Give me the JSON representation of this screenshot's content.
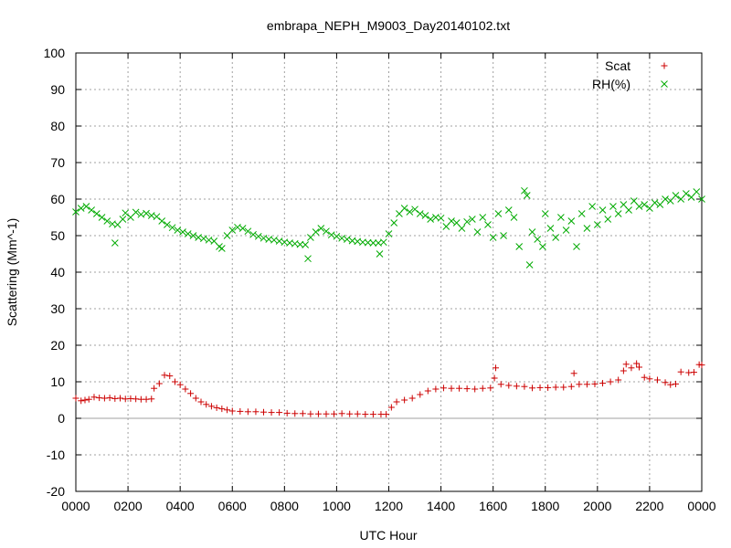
{
  "chart_data": {
    "type": "scatter",
    "title": "embrapa_NEPH_M9003_Day20140102.txt",
    "xlabel": "UTC Hour",
    "ylabel": "Scattering (Mm^-1)",
    "xlim": [
      0,
      24
    ],
    "ylim": [
      -20,
      100
    ],
    "yticks": [
      -20,
      -10,
      0,
      10,
      20,
      30,
      40,
      50,
      60,
      70,
      80,
      90,
      100
    ],
    "xticks": [
      0,
      2,
      4,
      6,
      8,
      10,
      12,
      14,
      16,
      18,
      20,
      22,
      24
    ],
    "xtick_labels": [
      "0000",
      "0200",
      "0400",
      "0600",
      "0800",
      "1000",
      "1200",
      "1400",
      "1600",
      "1800",
      "2000",
      "2200",
      "0000"
    ],
    "grid": true,
    "legend_position": "top-right",
    "series": [
      {
        "name": "Scat",
        "marker": "plus",
        "color": "#cc0000",
        "points": [
          [
            0.0,
            5.5
          ],
          [
            0.2,
            4.8
          ],
          [
            0.35,
            5.0
          ],
          [
            0.5,
            5.2
          ],
          [
            0.7,
            5.8
          ],
          [
            0.9,
            5.6
          ],
          [
            1.1,
            5.5
          ],
          [
            1.3,
            5.6
          ],
          [
            1.5,
            5.4
          ],
          [
            1.7,
            5.5
          ],
          [
            1.9,
            5.3
          ],
          [
            2.1,
            5.4
          ],
          [
            2.3,
            5.3
          ],
          [
            2.5,
            5.2
          ],
          [
            2.7,
            5.2
          ],
          [
            2.9,
            5.3
          ],
          [
            3.0,
            8.2
          ],
          [
            3.2,
            9.5
          ],
          [
            3.4,
            11.8
          ],
          [
            3.6,
            11.6
          ],
          [
            3.8,
            10.0
          ],
          [
            4.0,
            9.2
          ],
          [
            4.2,
            8.0
          ],
          [
            4.4,
            6.8
          ],
          [
            4.6,
            5.5
          ],
          [
            4.8,
            4.5
          ],
          [
            5.0,
            3.8
          ],
          [
            5.2,
            3.3
          ],
          [
            5.4,
            2.9
          ],
          [
            5.6,
            2.6
          ],
          [
            5.8,
            2.3
          ],
          [
            6.0,
            2.0
          ],
          [
            6.3,
            1.9
          ],
          [
            6.6,
            1.8
          ],
          [
            6.9,
            1.8
          ],
          [
            7.2,
            1.7
          ],
          [
            7.5,
            1.6
          ],
          [
            7.8,
            1.6
          ],
          [
            8.1,
            1.4
          ],
          [
            8.4,
            1.3
          ],
          [
            8.7,
            1.3
          ],
          [
            9.0,
            1.2
          ],
          [
            9.3,
            1.2
          ],
          [
            9.6,
            1.2
          ],
          [
            9.9,
            1.2
          ],
          [
            10.2,
            1.3
          ],
          [
            10.5,
            1.2
          ],
          [
            10.8,
            1.2
          ],
          [
            11.1,
            1.1
          ],
          [
            11.4,
            1.1
          ],
          [
            11.7,
            1.1
          ],
          [
            11.9,
            1.1
          ],
          [
            12.1,
            3.0
          ],
          [
            12.3,
            4.5
          ],
          [
            12.6,
            5.0
          ],
          [
            12.9,
            5.5
          ],
          [
            13.2,
            6.5
          ],
          [
            13.5,
            7.5
          ],
          [
            13.8,
            8.0
          ],
          [
            14.1,
            8.3
          ],
          [
            14.4,
            8.2
          ],
          [
            14.7,
            8.2
          ],
          [
            15.0,
            8.1
          ],
          [
            15.3,
            8.0
          ],
          [
            15.6,
            8.2
          ],
          [
            15.9,
            8.3
          ],
          [
            16.05,
            11.0
          ],
          [
            16.1,
            13.8
          ],
          [
            16.3,
            9.3
          ],
          [
            16.6,
            9.0
          ],
          [
            16.9,
            8.8
          ],
          [
            17.2,
            8.7
          ],
          [
            17.5,
            8.3
          ],
          [
            17.8,
            8.4
          ],
          [
            18.1,
            8.4
          ],
          [
            18.4,
            8.5
          ],
          [
            18.7,
            8.5
          ],
          [
            19.0,
            8.7
          ],
          [
            19.1,
            12.3
          ],
          [
            19.3,
            9.3
          ],
          [
            19.6,
            9.3
          ],
          [
            19.9,
            9.4
          ],
          [
            20.2,
            9.6
          ],
          [
            20.5,
            10.0
          ],
          [
            20.8,
            10.5
          ],
          [
            21.0,
            13.0
          ],
          [
            21.1,
            14.8
          ],
          [
            21.3,
            13.8
          ],
          [
            21.5,
            15.0
          ],
          [
            21.6,
            14.0
          ],
          [
            21.8,
            11.2
          ],
          [
            22.0,
            10.8
          ],
          [
            22.3,
            10.5
          ],
          [
            22.6,
            9.8
          ],
          [
            22.8,
            9.2
          ],
          [
            23.0,
            9.4
          ],
          [
            23.2,
            12.7
          ],
          [
            23.5,
            12.5
          ],
          [
            23.7,
            12.6
          ],
          [
            23.9,
            14.7
          ],
          [
            24.0,
            14.6
          ]
        ]
      },
      {
        "name": "RH(%)",
        "marker": "cross",
        "color": "#00aa00",
        "points": [
          [
            0.0,
            56.5
          ],
          [
            0.2,
            57.5
          ],
          [
            0.4,
            58.0
          ],
          [
            0.6,
            57.0
          ],
          [
            0.8,
            56.0
          ],
          [
            1.0,
            55.0
          ],
          [
            1.2,
            54.0
          ],
          [
            1.4,
            53.2
          ],
          [
            1.5,
            48.0
          ],
          [
            1.6,
            53.0
          ],
          [
            1.8,
            54.5
          ],
          [
            1.9,
            56.2
          ],
          [
            2.1,
            55.0
          ],
          [
            2.3,
            56.4
          ],
          [
            2.5,
            55.8
          ],
          [
            2.7,
            56.1
          ],
          [
            2.9,
            55.5
          ],
          [
            3.1,
            55.2
          ],
          [
            3.3,
            54.0
          ],
          [
            3.5,
            53.0
          ],
          [
            3.7,
            52.2
          ],
          [
            3.9,
            51.5
          ],
          [
            4.1,
            51.0
          ],
          [
            4.3,
            50.5
          ],
          [
            4.5,
            50.0
          ],
          [
            4.7,
            49.5
          ],
          [
            4.9,
            49.2
          ],
          [
            5.1,
            48.8
          ],
          [
            5.3,
            48.5
          ],
          [
            5.5,
            47.0
          ],
          [
            5.6,
            46.5
          ],
          [
            5.8,
            50.0
          ],
          [
            6.0,
            51.5
          ],
          [
            6.2,
            52.3
          ],
          [
            6.4,
            52.0
          ],
          [
            6.6,
            51.2
          ],
          [
            6.8,
            50.3
          ],
          [
            7.0,
            49.8
          ],
          [
            7.2,
            49.3
          ],
          [
            7.4,
            49.0
          ],
          [
            7.6,
            48.8
          ],
          [
            7.8,
            48.5
          ],
          [
            8.0,
            48.2
          ],
          [
            8.2,
            48.0
          ],
          [
            8.4,
            47.8
          ],
          [
            8.6,
            47.6
          ],
          [
            8.8,
            47.5
          ],
          [
            8.9,
            43.7
          ],
          [
            9.0,
            49.5
          ],
          [
            9.2,
            51.0
          ],
          [
            9.4,
            52.0
          ],
          [
            9.6,
            51.2
          ],
          [
            9.8,
            50.2
          ],
          [
            10.0,
            49.8
          ],
          [
            10.2,
            49.3
          ],
          [
            10.4,
            49.0
          ],
          [
            10.6,
            48.6
          ],
          [
            10.8,
            48.4
          ],
          [
            11.0,
            48.2
          ],
          [
            11.2,
            48.1
          ],
          [
            11.4,
            48.0
          ],
          [
            11.6,
            48.0
          ],
          [
            11.65,
            45.0
          ],
          [
            11.8,
            48.2
          ],
          [
            12.0,
            50.5
          ],
          [
            12.2,
            53.5
          ],
          [
            12.4,
            56.0
          ],
          [
            12.6,
            57.5
          ],
          [
            12.8,
            56.5
          ],
          [
            13.0,
            57.2
          ],
          [
            13.2,
            56.0
          ],
          [
            13.4,
            55.5
          ],
          [
            13.6,
            54.5
          ],
          [
            13.8,
            55.0
          ],
          [
            14.0,
            54.8
          ],
          [
            14.2,
            52.5
          ],
          [
            14.4,
            54.0
          ],
          [
            14.6,
            53.5
          ],
          [
            14.8,
            52.0
          ],
          [
            15.0,
            53.8
          ],
          [
            15.2,
            54.5
          ],
          [
            15.4,
            51.0
          ],
          [
            15.6,
            55.0
          ],
          [
            15.8,
            53.0
          ],
          [
            16.0,
            49.5
          ],
          [
            16.2,
            56.0
          ],
          [
            16.4,
            50.0
          ],
          [
            16.6,
            57.0
          ],
          [
            16.8,
            55.0
          ],
          [
            17.0,
            47.0
          ],
          [
            17.2,
            62.3
          ],
          [
            17.3,
            61.0
          ],
          [
            17.4,
            42.0
          ],
          [
            17.5,
            51.0
          ],
          [
            17.7,
            49.0
          ],
          [
            17.9,
            47.0
          ],
          [
            18.0,
            56.0
          ],
          [
            18.2,
            52.0
          ],
          [
            18.4,
            49.5
          ],
          [
            18.6,
            55.0
          ],
          [
            18.8,
            51.5
          ],
          [
            19.0,
            54.0
          ],
          [
            19.2,
            47.0
          ],
          [
            19.4,
            56.0
          ],
          [
            19.6,
            52.0
          ],
          [
            19.8,
            58.0
          ],
          [
            20.0,
            53.0
          ],
          [
            20.2,
            57.0
          ],
          [
            20.4,
            54.5
          ],
          [
            20.6,
            58.0
          ],
          [
            20.8,
            56.0
          ],
          [
            21.0,
            58.5
          ],
          [
            21.2,
            57.0
          ],
          [
            21.4,
            59.5
          ],
          [
            21.6,
            58.0
          ],
          [
            21.8,
            58.5
          ],
          [
            22.0,
            57.5
          ],
          [
            22.2,
            59.0
          ],
          [
            22.4,
            58.5
          ],
          [
            22.6,
            60.0
          ],
          [
            22.8,
            59.5
          ],
          [
            23.0,
            61.0
          ],
          [
            23.2,
            60.0
          ],
          [
            23.4,
            61.5
          ],
          [
            23.6,
            60.5
          ],
          [
            23.8,
            62.0
          ],
          [
            24.0,
            60.0
          ]
        ]
      }
    ]
  }
}
